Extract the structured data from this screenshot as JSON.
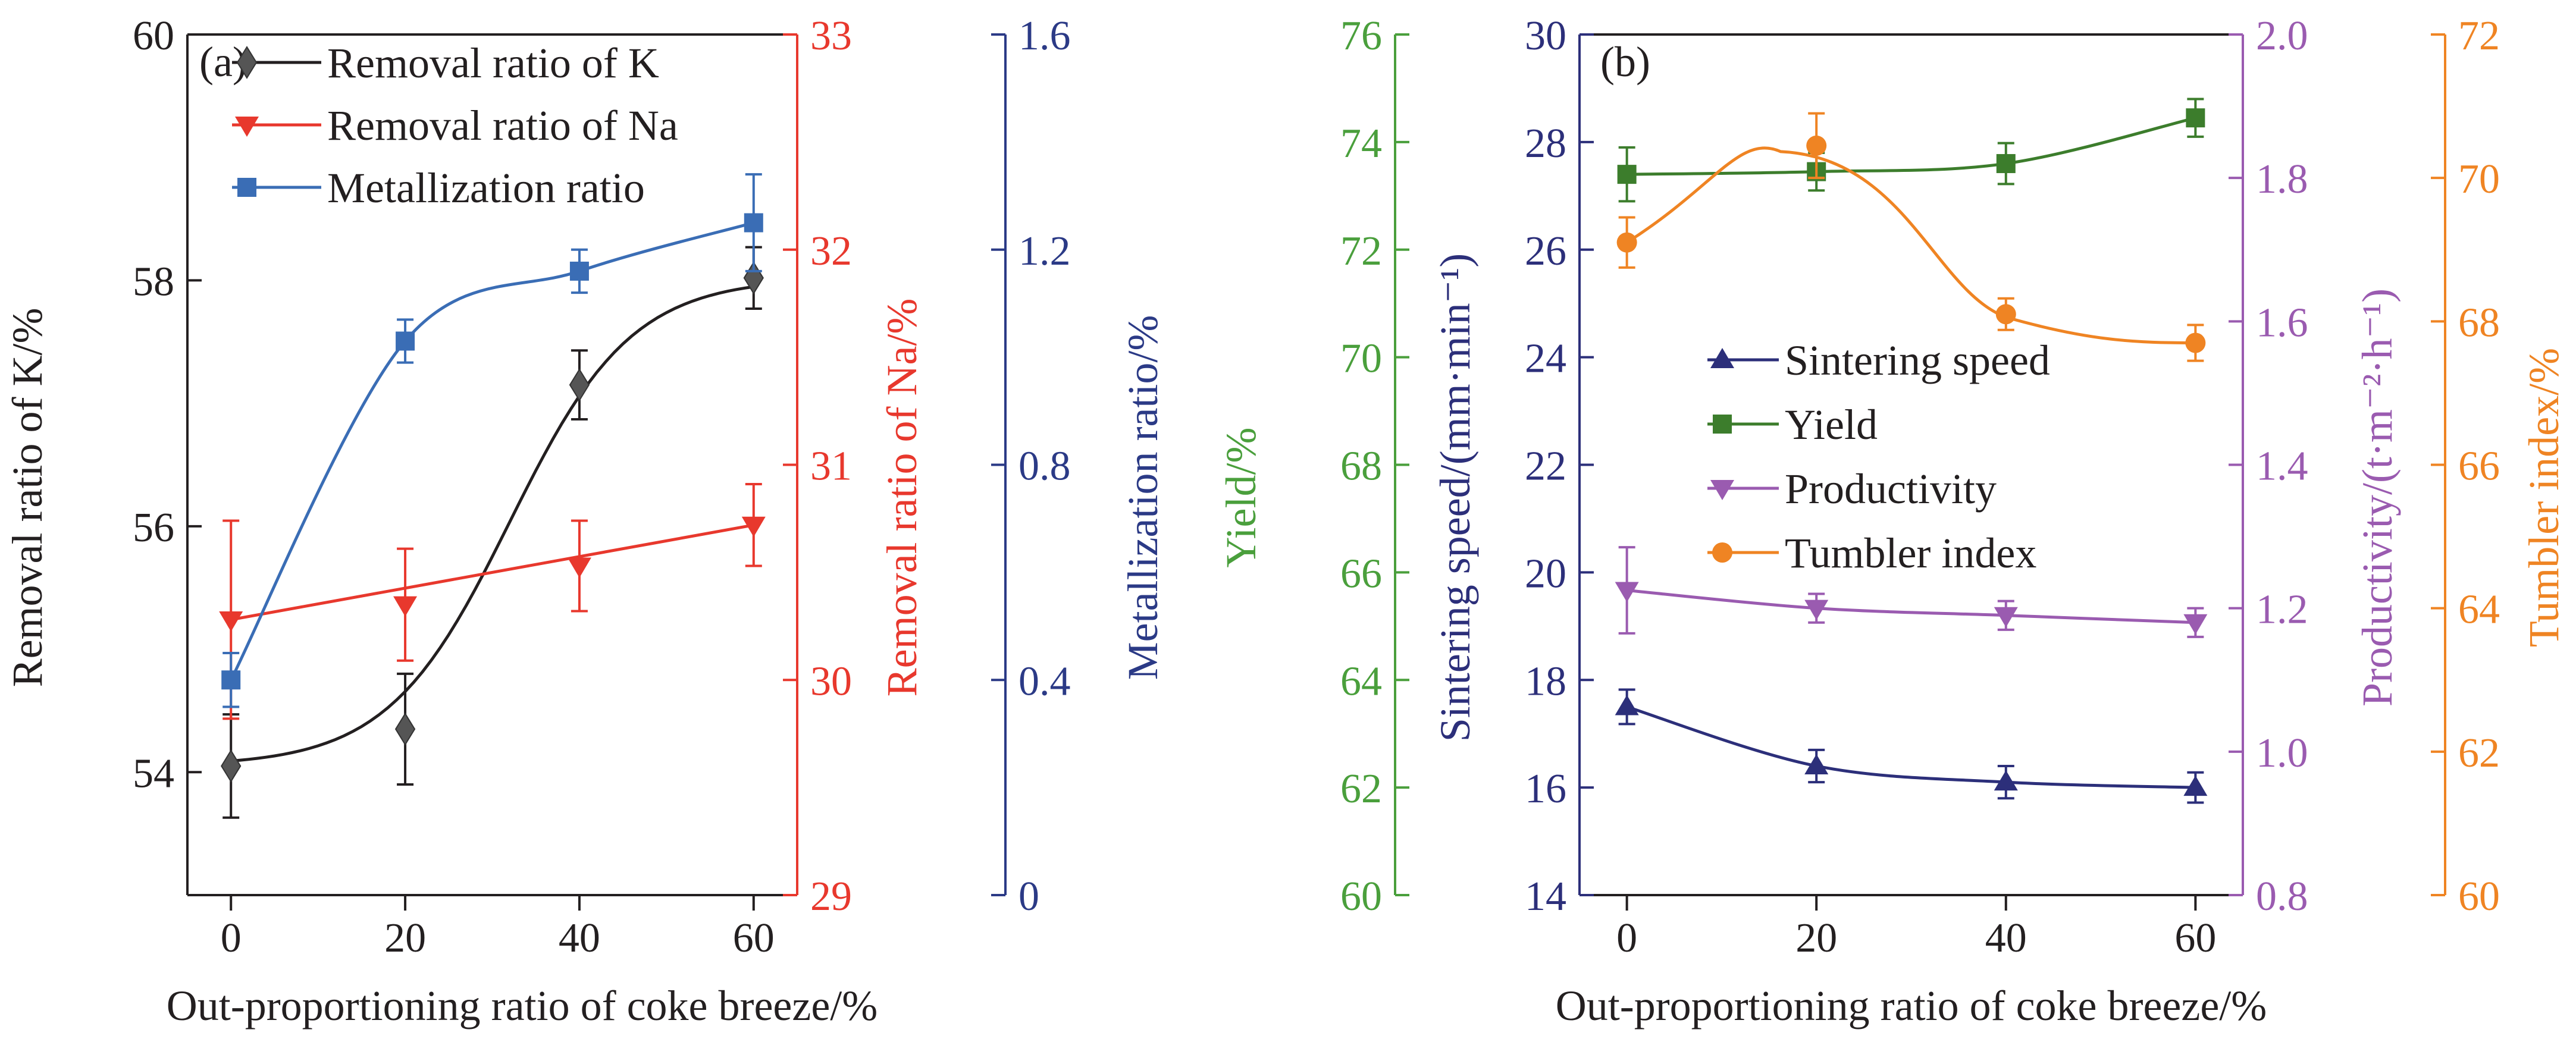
{
  "colors": {
    "black": "#231f20",
    "red": "#e8382d",
    "blue": "#2b3a86",
    "blue_series": "#3a6db5",
    "green_axis": "#4a9f3c",
    "green_series": "#3c7d2c",
    "purple": "#9a5bb0",
    "orange": "#ef8423",
    "dark_navy": "#2c2f7a"
  },
  "chart_data": [
    {
      "panel_label": "(a)",
      "type": "line",
      "xlabel": "Out-proportioning ratio of coke breeze/%",
      "x": [
        0,
        20,
        40,
        60
      ],
      "xlim": [
        -5,
        65
      ],
      "xticks": [
        0,
        20,
        40,
        60
      ],
      "axes": [
        {
          "id": "k",
          "label": "Removal ratio of K/%",
          "side": "left",
          "ylim": [
            53,
            60
          ],
          "ticks": [
            54,
            56,
            58,
            60
          ],
          "color": "black"
        },
        {
          "id": "na",
          "label": "Removal ratio of Na/%",
          "side": "right",
          "ylim": [
            29,
            33
          ],
          "ticks": [
            29,
            30,
            31,
            32,
            33
          ],
          "color": "red"
        },
        {
          "id": "met",
          "label": "Metallization ratio/%",
          "side": "right",
          "ylim": [
            0,
            1.6
          ],
          "ticks": [
            "0",
            "0.4",
            "0.8",
            "1.2",
            "1.6"
          ],
          "color": "blue"
        }
      ],
      "series": [
        {
          "name": "Removal ratio of K",
          "axis": "k",
          "marker": "diamond",
          "color": "black",
          "values": [
            54.05,
            54.35,
            57.15,
            58.02
          ],
          "errors": [
            0.42,
            0.45,
            0.28,
            0.25
          ],
          "fit": "sigmoid"
        },
        {
          "name": "Removal ratio of Na",
          "axis": "na",
          "marker": "triangle-down",
          "color": "red",
          "values": [
            30.28,
            30.35,
            30.53,
            30.72
          ],
          "errors": [
            0.46,
            0.26,
            0.21,
            0.19
          ],
          "fit": "linear"
        },
        {
          "name": "Metallization ratio",
          "axis": "met",
          "marker": "square",
          "color": "blue_series",
          "values": [
            0.4,
            1.03,
            1.16,
            1.25
          ],
          "errors": [
            0.05,
            0.04,
            0.04,
            0.09
          ],
          "fit": "smooth"
        }
      ],
      "legend_position": "top-left"
    },
    {
      "panel_label": "(b)",
      "type": "line",
      "xlabel": "Out-proportioning ratio of coke breeze/%",
      "x": [
        0,
        20,
        40,
        60
      ],
      "xlim": [
        -5,
        65
      ],
      "xticks": [
        0,
        20,
        40,
        60
      ],
      "axes": [
        {
          "id": "yield",
          "label": "Yield/%",
          "side": "left-outer",
          "ylim": [
            60,
            76
          ],
          "ticks": [
            60,
            62,
            64,
            66,
            68,
            70,
            72,
            74,
            76
          ],
          "color": "green_axis"
        },
        {
          "id": "speed",
          "label": "Sintering speed/(mm·min⁻¹)",
          "side": "left",
          "ylim": [
            14,
            30
          ],
          "ticks": [
            14,
            16,
            18,
            20,
            22,
            24,
            26,
            28,
            30
          ],
          "color": "dark_navy"
        },
        {
          "id": "prod",
          "label": "Productivity/(t·m⁻²·h⁻¹)",
          "side": "right",
          "ylim": [
            0.8,
            2.0
          ],
          "ticks": [
            "0.8",
            "1.0",
            "1.2",
            "1.4",
            "1.6",
            "1.8",
            "2.0"
          ],
          "color": "purple"
        },
        {
          "id": "tumbler",
          "label": "Tumbler index/%",
          "side": "right-outer",
          "ylim": [
            60,
            72
          ],
          "ticks": [
            60,
            62,
            64,
            66,
            68,
            70,
            72
          ],
          "color": "orange"
        }
      ],
      "series": [
        {
          "name": "Sintering speed",
          "axis": "speed",
          "marker": "triangle-up",
          "color": "dark_navy",
          "values": [
            17.5,
            16.4,
            16.1,
            16.0
          ],
          "errors": [
            0.32,
            0.3,
            0.3,
            0.28
          ],
          "fit": "smooth"
        },
        {
          "name": "Yield",
          "axis": "yield",
          "marker": "square",
          "color": "green_series",
          "values": [
            73.4,
            73.45,
            73.6,
            74.45
          ],
          "errors": [
            0.5,
            0.35,
            0.38,
            0.35
          ],
          "fit": "smooth"
        },
        {
          "name": "Productivity",
          "axis": "prod",
          "marker": "triangle-down",
          "color": "purple",
          "values": [
            1.225,
            1.2,
            1.19,
            1.18
          ],
          "errors": [
            0.06,
            0.02,
            0.02,
            0.02
          ],
          "fit": "smooth"
        },
        {
          "name": "Tumbler index",
          "axis": "tumbler",
          "marker": "circle",
          "color": "orange",
          "values": [
            69.1,
            70.45,
            68.1,
            67.7
          ],
          "errors": [
            0.35,
            0.45,
            0.22,
            0.25
          ],
          "fit": "hump"
        }
      ],
      "legend_position": "center-right"
    }
  ]
}
